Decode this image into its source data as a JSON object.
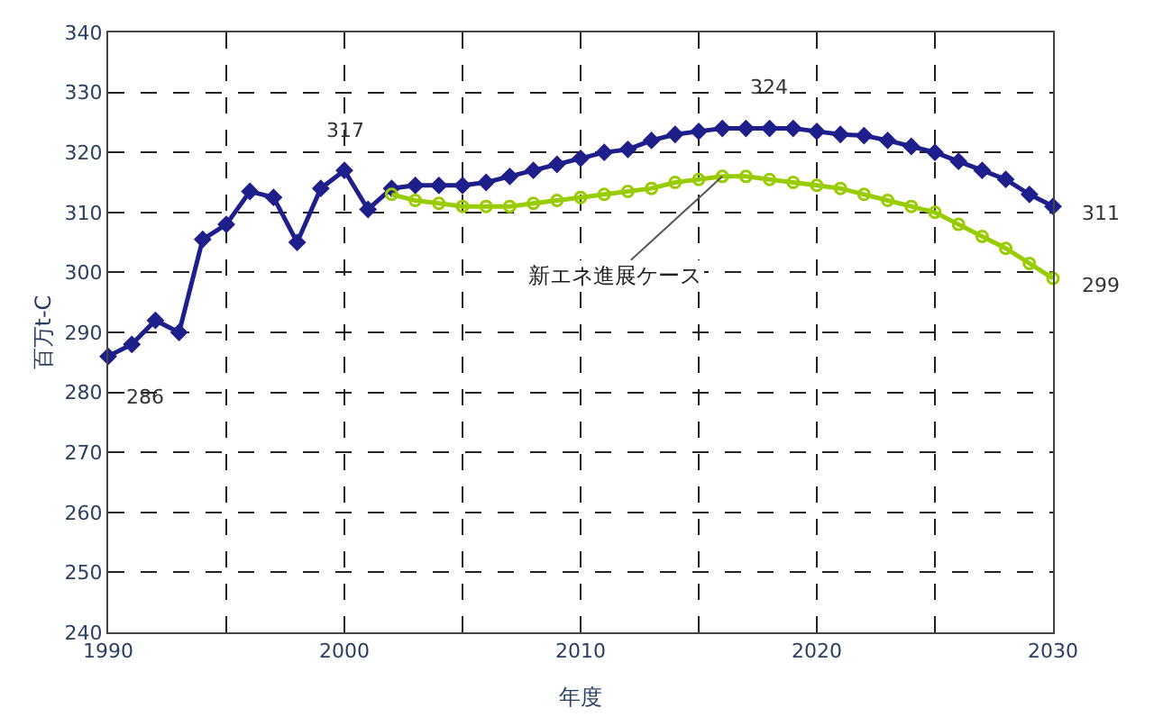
{
  "chart_data": {
    "type": "line",
    "xlabel": "年度",
    "ylabel": "百万t-C",
    "xlim": [
      1990,
      2030
    ],
    "xticks": [
      1990,
      {
        "value": 1995,
        "label": null
      },
      2000,
      {
        "value": 2005,
        "label": null
      },
      2010,
      {
        "value": 2015,
        "label": null
      },
      2020,
      {
        "value": 2025,
        "label": null
      },
      2030
    ],
    "ylim": [
      240,
      340
    ],
    "yticks": [
      240,
      250,
      260,
      270,
      280,
      290,
      300,
      310,
      320,
      330,
      340
    ],
    "grid": true,
    "legend": false,
    "series": [
      {
        "color": "#1f1f8c",
        "marker": "diamond",
        "x": [
          1990,
          1991,
          1992,
          1993,
          1994,
          1995,
          1996,
          1997,
          1998,
          1999,
          2000,
          2001,
          2002,
          2003,
          2004,
          2005,
          2006,
          2007,
          2008,
          2009,
          2010,
          2011,
          2012,
          2013,
          2014,
          2015,
          2016,
          2017,
          2018,
          2019,
          2020,
          2021,
          2022,
          2023,
          2024,
          2025,
          2026,
          2027,
          2028,
          2029,
          2030
        ],
        "values": [
          286,
          288,
          292,
          290,
          305.5,
          308,
          313.5,
          312.5,
          305,
          314,
          317,
          310.5,
          314,
          314.5,
          314.5,
          314.5,
          315,
          316,
          317,
          318,
          319,
          320,
          320.5,
          322,
          323,
          323.5,
          324,
          324,
          324,
          324,
          323.5,
          323,
          322.8,
          322,
          321,
          320,
          318.5,
          317,
          315.5,
          313,
          311
        ],
        "value_labels": [
          "286",
          null,
          null,
          null,
          null,
          null,
          null,
          null,
          null,
          null,
          "317",
          null,
          null,
          null,
          null,
          null,
          null,
          null,
          null,
          null,
          null,
          null,
          null,
          null,
          null,
          null,
          null,
          null,
          "324",
          null,
          null,
          null,
          null,
          null,
          null,
          null,
          null,
          null,
          null,
          null,
          "311"
        ]
      },
      {
        "name": "新エネ進展ケース",
        "color": "#99cc00",
        "marker": "circle",
        "x": [
          2002,
          2003,
          2004,
          2005,
          2006,
          2007,
          2008,
          2009,
          2010,
          2011,
          2012,
          2013,
          2014,
          2015,
          2016,
          2017,
          2018,
          2019,
          2020,
          2021,
          2022,
          2023,
          2024,
          2025,
          2026,
          2027,
          2028,
          2029,
          2030
        ],
        "values": [
          313,
          312,
          311.5,
          311,
          311,
          311,
          311.5,
          312,
          312.5,
          313,
          313.5,
          314,
          315,
          315.5,
          316,
          316,
          315.5,
          315,
          314.5,
          314,
          313,
          312,
          311,
          310,
          308,
          306,
          304,
          301.5,
          299
        ],
        "value_labels": [
          null,
          null,
          null,
          null,
          null,
          null,
          null,
          null,
          null,
          null,
          null,
          null,
          null,
          null,
          null,
          null,
          null,
          null,
          null,
          null,
          null,
          null,
          null,
          null,
          null,
          null,
          null,
          null,
          "299"
        ]
      }
    ]
  }
}
